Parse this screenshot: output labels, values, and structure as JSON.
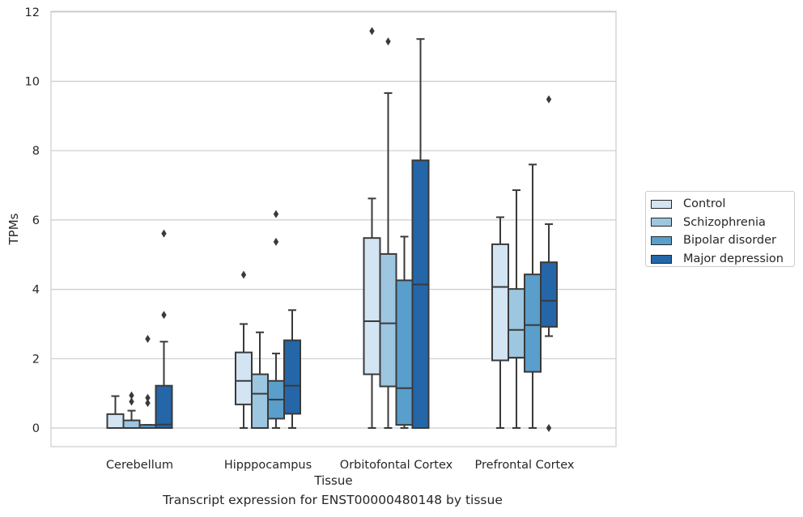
{
  "chart_data": {
    "type": "box",
    "xlabel": "Tissue",
    "ylabel": "TPMs",
    "ylim": [
      -0.55,
      12.05
    ],
    "yticks": [
      0,
      2,
      4,
      6,
      8,
      10,
      12
    ],
    "grid": "horizontal",
    "legend_position": "right",
    "categories": [
      "Cerebellum",
      "Hipppocampus",
      "Orbitofontal Cortex",
      "Prefrontal Cortex"
    ],
    "series": [
      {
        "name": "Control",
        "color": "#d3e4f3",
        "boxes": [
          {
            "whisker_low": 0,
            "q1": 0,
            "median": 0,
            "q3": 0.4,
            "whisker_high": 0.92,
            "outliers": []
          },
          {
            "whisker_low": 0,
            "q1": 0.68,
            "median": 1.36,
            "q3": 2.18,
            "whisker_high": 3.0,
            "outliers": [
              4.42
            ]
          },
          {
            "whisker_low": 0,
            "q1": 1.55,
            "median": 3.08,
            "q3": 5.48,
            "whisker_high": 6.62,
            "outliers": [
              11.45
            ]
          },
          {
            "whisker_low": 0,
            "q1": 1.95,
            "median": 4.07,
            "q3": 5.3,
            "whisker_high": 6.08,
            "outliers": []
          }
        ]
      },
      {
        "name": "Schizophrenia",
        "color": "#9dc6e0",
        "boxes": [
          {
            "whisker_low": 0,
            "q1": 0,
            "median": 0,
            "q3": 0.22,
            "whisker_high": 0.5,
            "outliers": [
              0.76,
              0.94
            ]
          },
          {
            "whisker_low": 0,
            "q1": 0,
            "median": 0.99,
            "q3": 1.55,
            "whisker_high": 2.76,
            "outliers": []
          },
          {
            "whisker_low": 0,
            "q1": 1.2,
            "median": 3.02,
            "q3": 5.02,
            "whisker_high": 9.66,
            "outliers": [
              11.15
            ]
          },
          {
            "whisker_low": 0,
            "q1": 2.03,
            "median": 2.83,
            "q3": 4.01,
            "whisker_high": 6.86,
            "outliers": []
          }
        ]
      },
      {
        "name": "Bipolar disorder",
        "color": "#5a9ecb",
        "boxes": [
          {
            "whisker_low": 0,
            "q1": 0,
            "median": 0,
            "q3": 0.09,
            "whisker_high": 0.09,
            "outliers": [
              0.72,
              0.87,
              2.57
            ]
          },
          {
            "whisker_low": 0,
            "q1": 0.27,
            "median": 0.82,
            "q3": 1.36,
            "whisker_high": 2.15,
            "outliers": [
              5.37,
              6.17
            ]
          },
          {
            "whisker_low": 0,
            "q1": 0.09,
            "median": 1.15,
            "q3": 4.26,
            "whisker_high": 5.52,
            "outliers": []
          },
          {
            "whisker_low": 0,
            "q1": 1.62,
            "median": 2.97,
            "q3": 4.43,
            "whisker_high": 7.6,
            "outliers": []
          }
        ]
      },
      {
        "name": "Major depression",
        "color": "#2466a8",
        "boxes": [
          {
            "whisker_low": 0,
            "q1": 0,
            "median": 0.1,
            "q3": 1.22,
            "whisker_high": 2.49,
            "outliers": [
              3.26,
              5.61
            ]
          },
          {
            "whisker_low": 0,
            "q1": 0.41,
            "median": 1.22,
            "q3": 2.53,
            "whisker_high": 3.4,
            "outliers": []
          },
          {
            "whisker_low": 0,
            "q1": 0,
            "median": 4.14,
            "q3": 7.72,
            "whisker_high": 11.22,
            "outliers": []
          },
          {
            "whisker_low": 2.65,
            "q1": 2.92,
            "median": 3.67,
            "q3": 4.78,
            "whisker_high": 5.88,
            "outliers": [
              0,
              9.48
            ]
          }
        ]
      }
    ]
  },
  "caption": "Transcript expression for ENST00000480148 by tissue"
}
